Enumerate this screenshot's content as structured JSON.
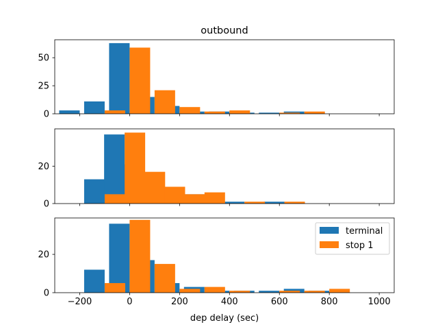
{
  "chart_data": {
    "type": "bar",
    "title": "outbound",
    "xlabel": "dep delay (sec)",
    "xlim": [
      -300,
      1060
    ],
    "x_ticks": [
      -200,
      0,
      200,
      400,
      600,
      800,
      1000
    ],
    "legend": {
      "placement": "top-right",
      "entries": [
        "terminal",
        "stop 1"
      ]
    },
    "colors": {
      "terminal": "#1f77b4",
      "stop 1": "#ff7f0e"
    },
    "subplots": [
      {
        "name": "top",
        "ylim": [
          0,
          66
        ],
        "y_ticks": [
          0,
          25,
          50
        ],
        "bin_centers": [
          -200,
          -100,
          0,
          100,
          200,
          300,
          400,
          500,
          600,
          700,
          800,
          900,
          1000
        ],
        "series": [
          {
            "name": "terminal",
            "values": [
              3,
              11,
              63,
              15,
              7,
              2,
              2,
              1,
              1,
              2,
              0,
              0,
              0
            ]
          },
          {
            "name": "stop 1",
            "values": [
              0,
              3,
              59,
              21,
              6,
              2,
              3,
              0,
              1,
              2,
              0,
              0,
              0
            ]
          }
        ]
      },
      {
        "name": "middle",
        "ylim": [
          0,
          40
        ],
        "y_ticks": [
          0,
          20
        ],
        "bin_centers": [
          -100,
          -20,
          60,
          140,
          220,
          300,
          380,
          460,
          540,
          620,
          700
        ],
        "series": [
          {
            "name": "terminal",
            "values": [
              13,
              37,
              21,
              8,
              5,
              5,
              1,
              1,
              0,
              1,
              0
            ]
          },
          {
            "name": "stop 1",
            "values": [
              5,
              38,
              17,
              9,
              5,
              6,
              0,
              1,
              0,
              1,
              0
            ]
          }
        ]
      },
      {
        "name": "bottom",
        "ylim": [
          0,
          39
        ],
        "y_ticks": [
          0,
          20
        ],
        "bin_centers": [
          -100,
          0,
          100,
          200,
          300,
          400,
          500,
          600,
          700,
          800,
          900
        ],
        "series": [
          {
            "name": "terminal",
            "values": [
              12,
              36,
              17,
              5,
              3,
              1,
              1,
              1,
              2,
              1,
              0
            ]
          },
          {
            "name": "stop 1",
            "values": [
              5,
              38,
              15,
              2,
              3,
              1,
              0,
              1,
              1,
              2,
              0
            ]
          }
        ]
      }
    ]
  }
}
